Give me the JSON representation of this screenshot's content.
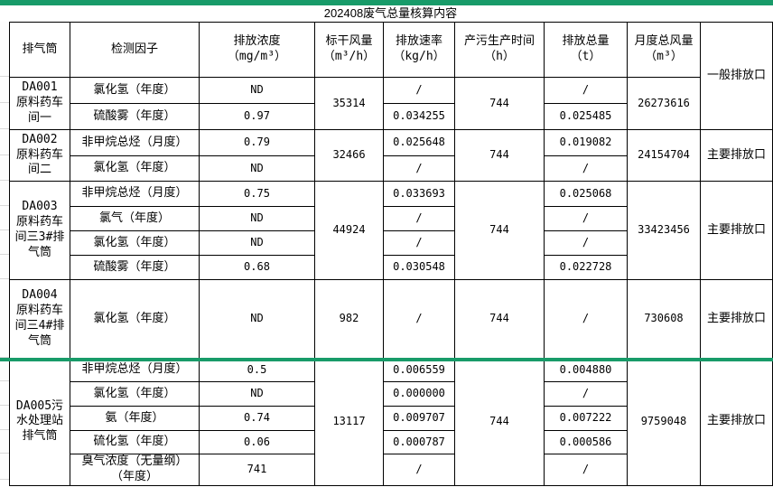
{
  "title": "202408废气总量核算内容",
  "colors": {
    "accent_green": "#189b69",
    "cell_border": "#000000",
    "faint_gridline": "#d9d9d9"
  },
  "table": {
    "columns": [
      {
        "key": "stack",
        "label": "排气筒",
        "unit": ""
      },
      {
        "key": "factor",
        "label": "检测因子",
        "unit": ""
      },
      {
        "key": "concentration",
        "label": "排放浓度",
        "unit": "（mg/m³）"
      },
      {
        "key": "air-volume",
        "label": "标干风量",
        "unit": "（m³/h）"
      },
      {
        "key": "rate",
        "label": "排放速率",
        "unit": "（kg/h）"
      },
      {
        "key": "hours",
        "label": "产污生产时间",
        "unit": "（h）"
      },
      {
        "key": "total",
        "label": "排放总量",
        "unit": "（t）"
      },
      {
        "key": "monthly-volume",
        "label": "月度总风量",
        "unit": "（m³）"
      },
      {
        "key": "outlet",
        "label": "",
        "unit": ""
      }
    ],
    "groups": [
      {
        "stack": "DA001\n原料药车\n间一",
        "air_volume": "35314",
        "hours": "744",
        "monthly_volume": "26273616",
        "outlet": "一般排放口",
        "outlet_spans_header": true,
        "rows": [
          {
            "factor": "氯化氢（年度）",
            "concentration": "ND",
            "rate": "/",
            "total": "/"
          },
          {
            "factor": "硫酸雾（年度）",
            "concentration": "0.97",
            "rate": "0.034255",
            "total": "0.025485"
          }
        ]
      },
      {
        "stack": "DA002\n原料药车\n间二",
        "air_volume": "32466",
        "hours": "744",
        "monthly_volume": "24154704",
        "outlet": "主要排放口",
        "outlet_spans_header": false,
        "rows": [
          {
            "factor": "非甲烷总烃（月度）",
            "concentration": "0.79",
            "rate": "0.025648",
            "total": "0.019082"
          },
          {
            "factor": "氯化氢（年度）",
            "concentration": "ND",
            "rate": "/",
            "total": "/"
          }
        ]
      },
      {
        "stack": "DA003\n原料药车\n间三3#排\n气筒",
        "air_volume": "44924",
        "hours": "744",
        "monthly_volume": "33423456",
        "outlet": "主要排放口",
        "outlet_spans_header": false,
        "rows": [
          {
            "factor": "非甲烷总烃（月度）",
            "concentration": "0.75",
            "rate": "0.033693",
            "total": "0.025068"
          },
          {
            "factor": "氯气（年度）",
            "concentration": "ND",
            "rate": "/",
            "total": "/"
          },
          {
            "factor": "氯化氢（年度）",
            "concentration": "ND",
            "rate": "/",
            "total": "/"
          },
          {
            "factor": "硫酸雾（年度）",
            "concentration": "0.68",
            "rate": "0.030548",
            "total": "0.022728"
          }
        ]
      },
      {
        "stack": "DA004\n原料药车\n间三4#排\n气筒",
        "air_volume": "982",
        "hours": "744",
        "monthly_volume": "730608",
        "outlet": "主要排放口",
        "outlet_spans_header": false,
        "rows": [
          {
            "factor": "氯化氢（年度）",
            "concentration": "ND",
            "rate": "/",
            "total": "/"
          }
        ]
      },
      {
        "stack": "DA005污\n水处理站\n排气筒",
        "air_volume": "13117",
        "hours": "744",
        "monthly_volume": "9759048",
        "outlet": "主要排放口",
        "outlet_spans_header": false,
        "rows": [
          {
            "factor": "非甲烷总烃（月度）",
            "concentration": "0.5",
            "rate": "0.006559",
            "total": "0.004880"
          },
          {
            "factor": "氯化氢（年度）",
            "concentration": "ND",
            "rate": "0.000000",
            "total": "/"
          },
          {
            "factor": "氨（年度）",
            "concentration": "0.74",
            "rate": "0.009707",
            "total": "0.007222"
          },
          {
            "factor": "硫化氢（年度）",
            "concentration": "0.06",
            "rate": "0.000787",
            "total": "0.000586"
          },
          {
            "factor": "臭气浓度（无量纲）\n（年度）",
            "concentration": "741",
            "rate": "/",
            "total": "/"
          }
        ]
      }
    ]
  }
}
